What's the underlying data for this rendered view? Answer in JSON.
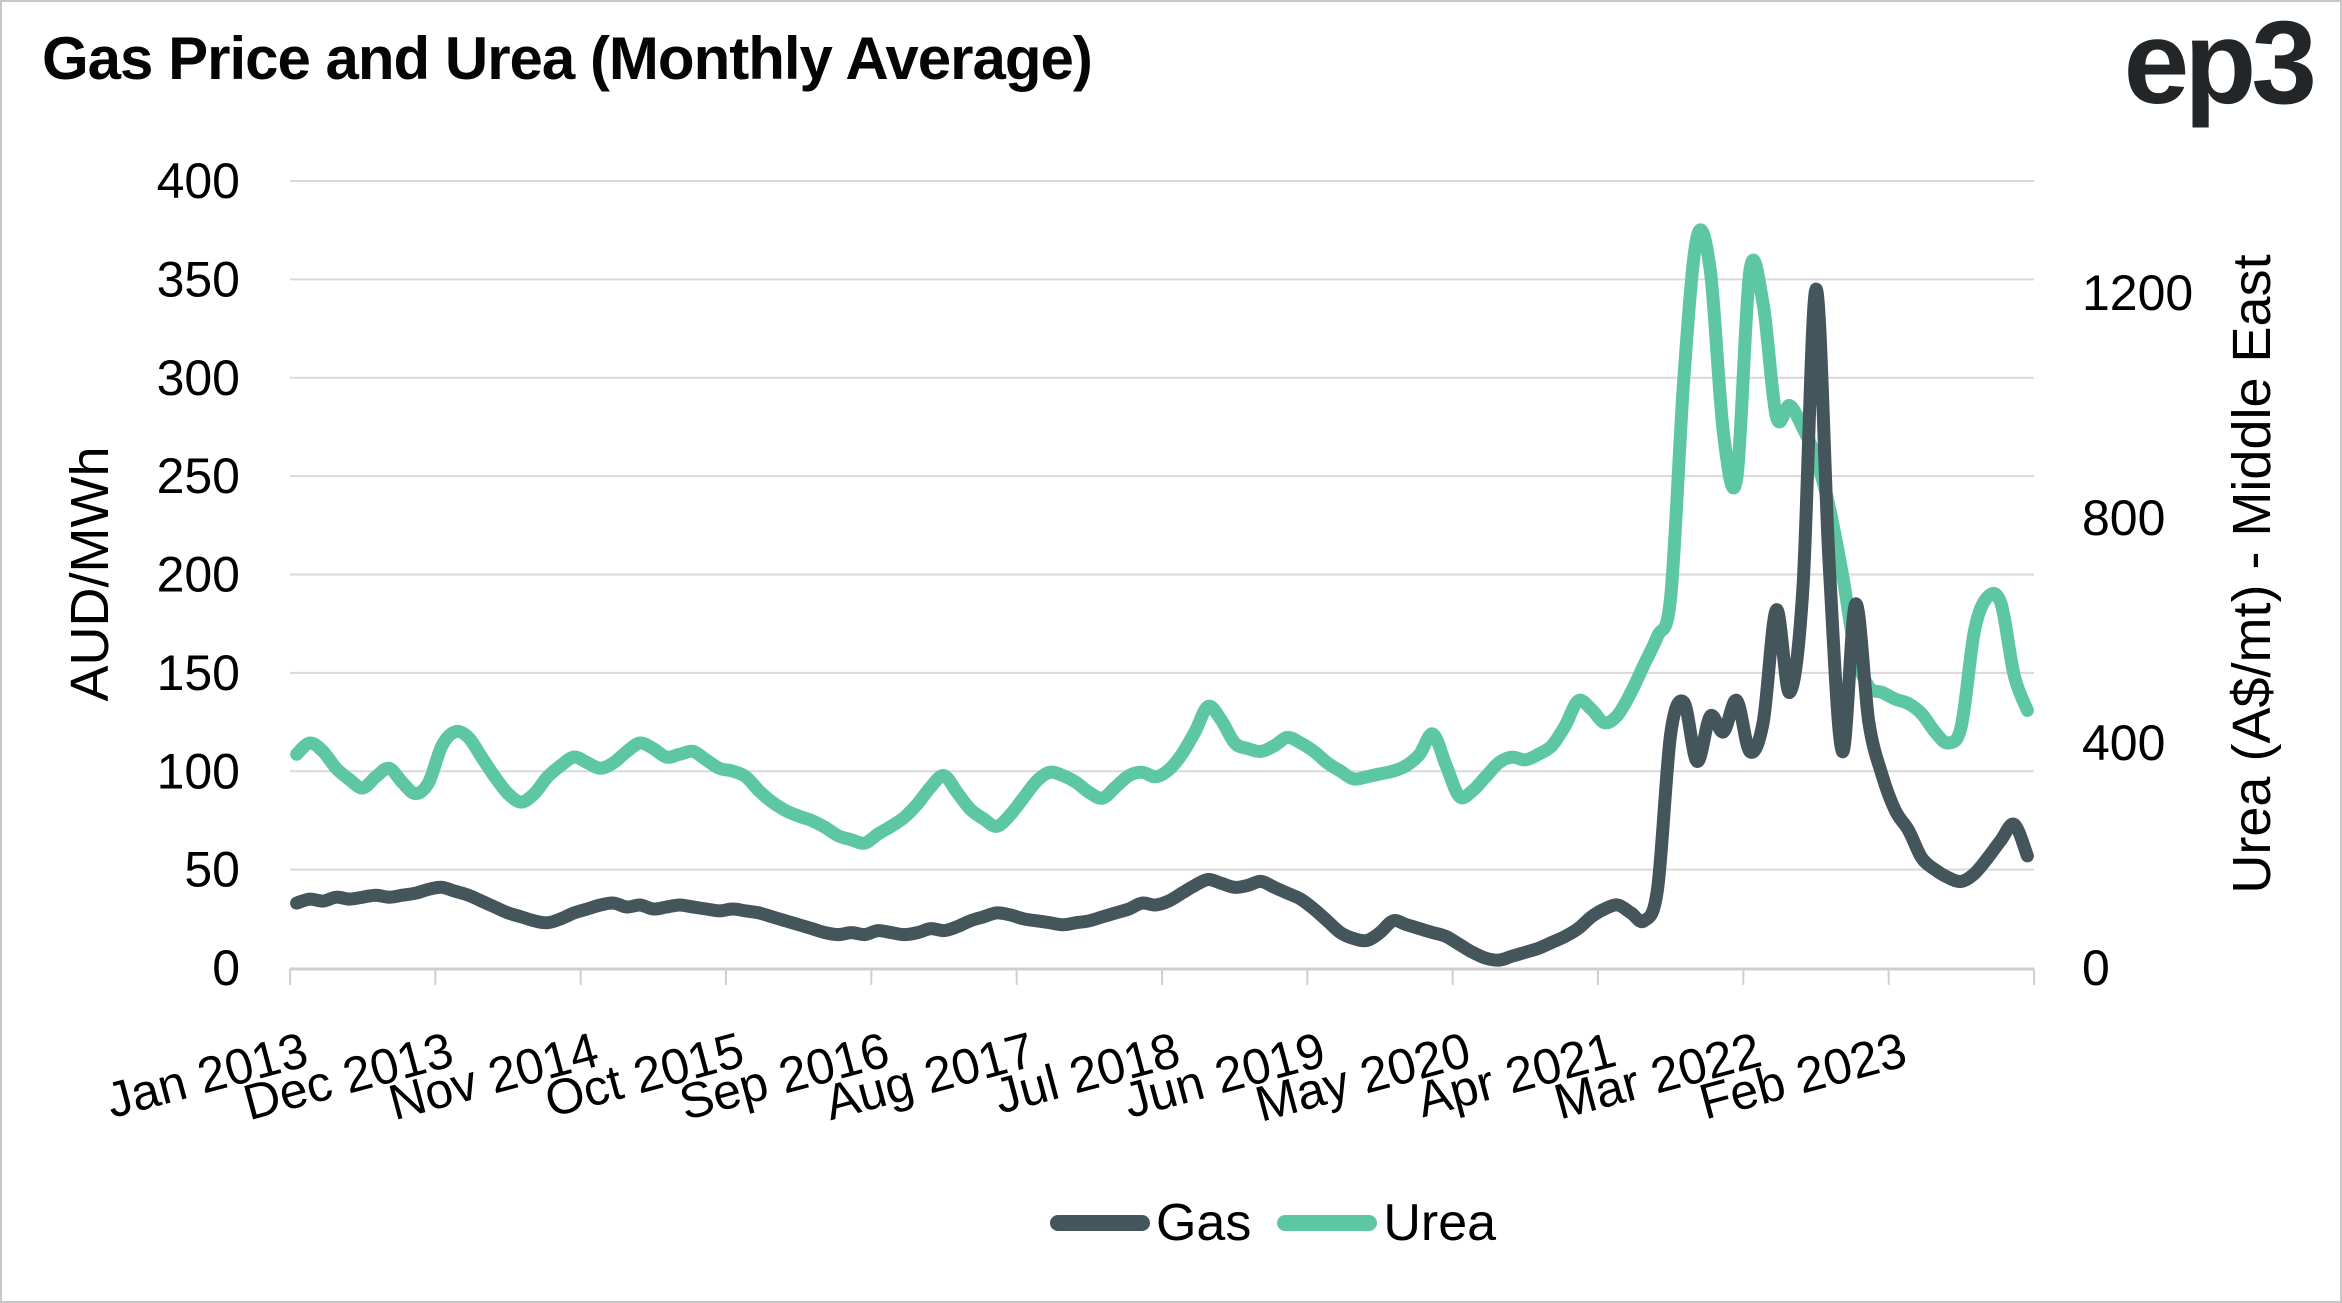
{
  "header": {
    "title": "Gas Price and Urea (Monthly Average)",
    "logo": "ep3"
  },
  "axes": {
    "left": {
      "title": "AUD/MWh",
      "ticks": [
        "400",
        "350",
        "300",
        "250",
        "200",
        "150",
        "100",
        "50",
        "0"
      ]
    },
    "right": {
      "title": "Urea (A$/mt) - Middle East",
      "ticks": [
        "1200",
        "800",
        "400",
        "0"
      ]
    },
    "x": {
      "tick_labels": [
        "Jan 2013",
        "Dec 2013",
        "Nov 2014",
        "Oct 2015",
        "Sep 2016",
        "Aug 2017",
        "Jul 2018",
        "Jun 2019",
        "May 2020",
        "Apr 2021",
        "Mar 2022",
        "Feb 2023"
      ]
    }
  },
  "legend": {
    "items": [
      {
        "label": "Gas",
        "color": "#44555B"
      },
      {
        "label": "Urea",
        "color": "#5CC7A2"
      }
    ]
  },
  "colors": {
    "gas_line": "#44555B",
    "urea_line": "#5CC7A2",
    "gridline": "#d9d9d9",
    "axis_line": "#cfcfcf",
    "text": "#000000"
  },
  "chart_data": {
    "type": "line",
    "title": "Gas Price and Urea (Monthly Average)",
    "x_start": "Jan 2013",
    "x_end": "Dec 2023",
    "frequency": "monthly",
    "points_per_series": 132,
    "x_tick_labels": [
      "Jan 2013",
      "Dec 2013",
      "Nov 2014",
      "Oct 2015",
      "Sep 2016",
      "Aug 2017",
      "Jul 2018",
      "Jun 2019",
      "May 2020",
      "Apr 2021",
      "Mar 2022",
      "Feb 2023"
    ],
    "x_label_interval_months": 11,
    "ylabel_left": "AUD/MWh",
    "ylabel_right": "Urea (A$/mt) - Middle East",
    "ylim_left": [
      0,
      400
    ],
    "left_axis_ticks": [
      0,
      50,
      100,
      150,
      200,
      250,
      300,
      350,
      400
    ],
    "right_axis_ticks": [
      0,
      400,
      800,
      1200
    ],
    "grid": "horizontal",
    "legend_position": "bottom",
    "note": "values estimated from pixel positions",
    "series": [
      {
        "name": "Gas",
        "axis": "left",
        "units": "AUD/MWh",
        "color": "#44555B",
        "values": [
          33,
          35,
          34,
          36,
          35,
          36,
          37,
          36,
          37,
          38,
          40,
          41,
          39,
          37,
          34,
          31,
          28,
          26,
          24,
          23,
          25,
          28,
          30,
          32,
          33,
          31,
          32,
          30,
          31,
          32,
          31,
          30,
          29,
          30,
          29,
          28,
          26,
          24,
          22,
          20,
          18,
          17,
          18,
          17,
          19,
          18,
          17,
          18,
          20,
          19,
          21,
          24,
          26,
          28,
          27,
          25,
          24,
          23,
          22,
          23,
          24,
          26,
          28,
          30,
          33,
          32,
          34,
          38,
          42,
          45,
          43,
          41,
          42,
          44,
          41,
          38,
          35,
          30,
          24,
          18,
          15,
          14,
          18,
          24,
          22,
          20,
          18,
          16,
          12,
          8,
          5,
          4,
          6,
          8,
          10,
          13,
          16,
          20,
          26,
          30,
          32,
          28,
          24,
          40,
          119,
          135,
          105,
          128,
          120,
          136,
          110,
          125,
          182,
          140,
          192,
          345,
          205,
          110,
          185,
          125,
          98,
          80,
          70,
          56,
          50,
          46,
          44,
          48,
          56,
          65,
          73,
          57
        ]
      },
      {
        "name": "Urea",
        "axis": "right",
        "units": "A$/mt",
        "color": "#5CC7A2",
        "values": [
          380,
          400,
          385,
          355,
          335,
          320,
          340,
          355,
          330,
          310,
          330,
          395,
          420,
          410,
          375,
          340,
          310,
          295,
          310,
          340,
          360,
          375,
          365,
          355,
          365,
          385,
          400,
          390,
          375,
          380,
          385,
          370,
          355,
          350,
          340,
          315,
          295,
          280,
          270,
          262,
          250,
          235,
          228,
          222,
          238,
          252,
          268,
          292,
          322,
          342,
          312,
          282,
          265,
          252,
          272,
          302,
          332,
          348,
          342,
          330,
          312,
          302,
          322,
          342,
          348,
          340,
          352,
          380,
          420,
          465,
          440,
          400,
          390,
          385,
          395,
          410,
          400,
          385,
          365,
          350,
          336,
          340,
          345,
          350,
          360,
          380,
          416,
          360,
          305,
          315,
          340,
          365,
          375,
          370,
          380,
          395,
          430,
          475,
          460,
          436,
          450,
          490,
          540,
          590,
          660,
          1050,
          1300,
          1240,
          950,
          870,
          1240,
          1180,
          980,
          1000,
          960,
          907,
          820,
          700,
          560,
          500,
          490,
          478,
          470,
          452,
          420,
          400,
          430,
          600,
          660,
          648,
          520,
          458
        ]
      }
    ]
  }
}
